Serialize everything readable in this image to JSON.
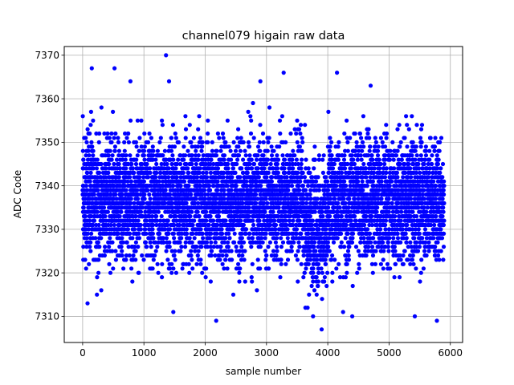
{
  "chart_data": {
    "type": "scatter",
    "title": "channel079 higain raw data",
    "xlabel": "sample number",
    "ylabel": "ADC Code",
    "xlim": [
      -300,
      6200
    ],
    "ylim": [
      7304,
      7372
    ],
    "xticks": [
      0,
      1000,
      2000,
      3000,
      4000,
      5000,
      6000
    ],
    "yticks": [
      7310,
      7320,
      7330,
      7340,
      7350,
      7360,
      7370
    ],
    "grid": true,
    "marker_color": "#0000ff",
    "n_points": 5900,
    "noise_model": {
      "baseline": 7337,
      "sigma": 7,
      "low_window": {
        "x": [
          3600,
          4000
        ],
        "center": 7331
      },
      "clip": [
        7307,
        7366
      ]
    },
    "outliers": [
      {
        "x": 150,
        "y": 7367
      },
      {
        "x": 520,
        "y": 7367
      },
      {
        "x": 1360,
        "y": 7370
      },
      {
        "x": 1410,
        "y": 7364
      },
      {
        "x": 3280,
        "y": 7366
      },
      {
        "x": 4150,
        "y": 7366
      },
      {
        "x": 780,
        "y": 7364
      },
      {
        "x": 2900,
        "y": 7364
      },
      {
        "x": 4700,
        "y": 7363
      },
      {
        "x": 2180,
        "y": 7309
      },
      {
        "x": 5780,
        "y": 7309
      },
      {
        "x": 3900,
        "y": 7307
      },
      {
        "x": 80,
        "y": 7313
      },
      {
        "x": 1480,
        "y": 7311
      },
      {
        "x": 3760,
        "y": 7310
      },
      {
        "x": 5420,
        "y": 7310
      },
      {
        "x": 4400,
        "y": 7310
      },
      {
        "x": 4250,
        "y": 7311
      }
    ]
  }
}
